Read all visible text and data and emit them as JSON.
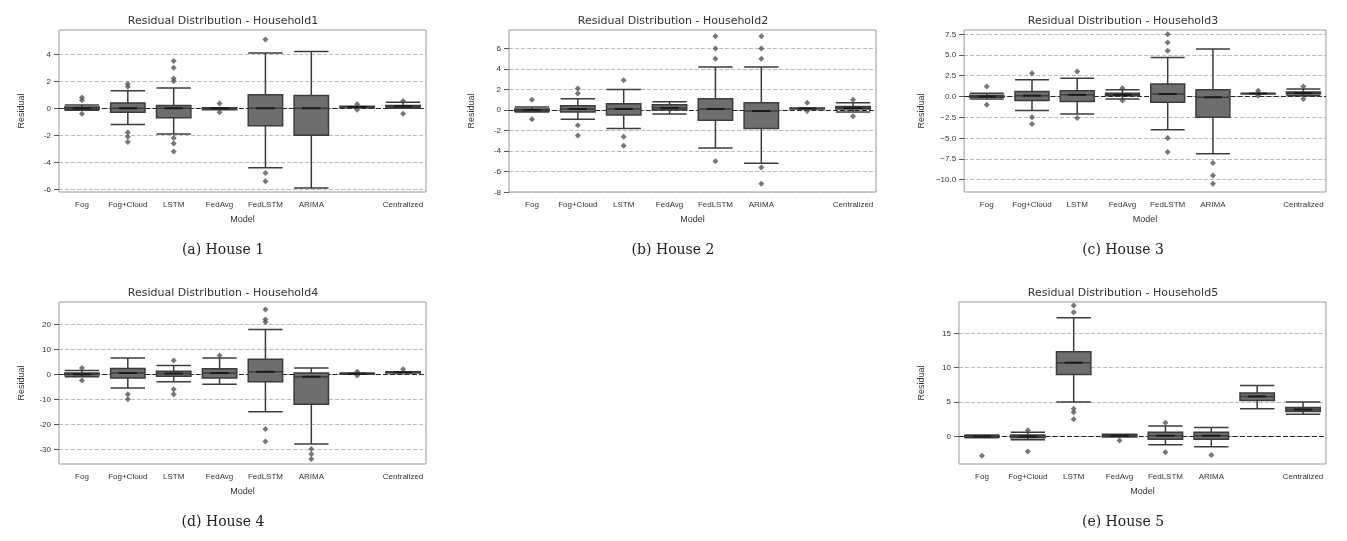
{
  "chart_data": [
    {
      "type": "box",
      "title": "Residual Distribution - Household1",
      "xlabel": "Model",
      "ylabel": "Residual",
      "annotations": [
        "(a) House 1"
      ],
      "categories": [
        "Fog",
        "Fog+Cloud",
        "LSTM",
        "FedAvg",
        "FedLSTM",
        "ARIMA",
        null,
        "Centralized"
      ],
      "color": "#6e6e6e",
      "marker": "diamond",
      "grid": "y",
      "ylim": [
        -6.2,
        5.8
      ],
      "yticks": [
        -6,
        -4,
        -2,
        0,
        2,
        4
      ],
      "ref_lines": [
        {
          "axis": "y",
          "value": 0,
          "line_style": "dashed",
          "color": "#222222"
        }
      ],
      "boxes": [
        {
          "low": -0.15,
          "q1": -0.05,
          "median": 0,
          "q3": 0.1,
          "high": 0.25,
          "outliers": [
            0.8,
            0.6,
            -0.4
          ]
        },
        {
          "low": -1.2,
          "q1": -0.3,
          "median": 0,
          "q3": 0.4,
          "high": 1.3,
          "outliers": [
            1.8,
            1.6,
            -1.8,
            -2.1,
            -2.5
          ]
        },
        {
          "low": -1.9,
          "q1": -0.7,
          "median": 0,
          "q3": 0.2,
          "high": 1.5,
          "outliers": [
            2.0,
            2.2,
            3.0,
            3.5,
            -2.2,
            -2.6,
            -3.2
          ]
        },
        {
          "low": -0.1,
          "q1": -0.1,
          "median": 0,
          "q3": 0.05,
          "high": 0.05,
          "outliers": [
            0.35,
            -0.3
          ]
        },
        {
          "low": -4.4,
          "q1": -1.3,
          "median": 0,
          "q3": 1.0,
          "high": 4.1,
          "outliers": [
            5.1,
            -4.8,
            -5.4
          ]
        },
        {
          "low": -5.9,
          "q1": -2.0,
          "median": 0,
          "q3": 0.95,
          "high": 4.2
        },
        {
          "low": 0.05,
          "q1": 0.05,
          "median": 0.1,
          "q3": 0.15,
          "high": 0.15,
          "outliers": [
            0.3,
            -0.1
          ]
        },
        {
          "low": 0,
          "q1": 0.1,
          "median": 0.15,
          "q3": 0.2,
          "high": 0.45,
          "outliers": [
            0.55,
            -0.4
          ]
        }
      ]
    },
    {
      "type": "box",
      "title": "Residual Distribution - Household2",
      "xlabel": "Model",
      "ylabel": "Residual",
      "annotations": [
        "(b) House 2"
      ],
      "categories": [
        "Fog",
        "Fog+Cloud",
        "LSTM",
        "FedAvg",
        "FedLSTM",
        "ARIMA",
        null,
        "Centralized"
      ],
      "color": "#6e6e6e",
      "marker": "diamond",
      "grid": "y",
      "ylim": [
        -8,
        7.8
      ],
      "yticks": [
        -8,
        -6,
        -4,
        -2,
        0,
        2,
        4,
        6
      ],
      "ref_lines": [
        {
          "axis": "y",
          "value": 0,
          "line_style": "dashed",
          "color": "#222222"
        }
      ],
      "boxes": [
        {
          "low": -0.2,
          "q1": -0.1,
          "median": 0,
          "q3": 0.1,
          "high": 0.3,
          "outliers": [
            1.0,
            -0.9
          ]
        },
        {
          "low": -0.9,
          "q1": -0.2,
          "median": 0.1,
          "q3": 0.4,
          "high": 1.1,
          "outliers": [
            2.1,
            1.6,
            -1.5,
            -2.5
          ]
        },
        {
          "low": -1.8,
          "q1": -0.5,
          "median": 0.1,
          "q3": 0.6,
          "high": 2.0,
          "outliers": [
            2.9,
            -2.6,
            -3.5
          ]
        },
        {
          "low": -0.4,
          "q1": 0,
          "median": 0.2,
          "q3": 0.5,
          "high": 0.8
        },
        {
          "low": -3.7,
          "q1": -1.0,
          "median": 0.1,
          "q3": 1.1,
          "high": 4.2,
          "outliers": [
            5.0,
            6.0,
            7.2,
            -5.0
          ]
        },
        {
          "low": -5.2,
          "q1": -1.8,
          "median": -0.1,
          "q3": 0.7,
          "high": 4.2,
          "outliers": [
            5.0,
            6.0,
            7.2,
            -5.6,
            -7.2
          ]
        },
        {
          "low": 0.1,
          "q1": 0.1,
          "median": 0.15,
          "q3": 0.2,
          "high": 0.2,
          "outliers": [
            0.7,
            -0.1
          ]
        },
        {
          "low": -0.2,
          "q1": 0.1,
          "median": 0.2,
          "q3": 0.35,
          "high": 0.7,
          "outliers": [
            1.0,
            -0.6
          ]
        }
      ]
    },
    {
      "type": "box",
      "title": "Residual Distribution - Household3",
      "xlabel": "Model",
      "ylabel": "Residual",
      "annotations": [
        "(c) House 3"
      ],
      "categories": [
        "Fog",
        "Fog+Cloud",
        "LSTM",
        "FedAvg",
        "FedLSTM",
        "ARIMA",
        null,
        "Centralized"
      ],
      "color": "#6e6e6e",
      "marker": "diamond",
      "grid": "y",
      "ylim": [
        -11.5,
        8
      ],
      "yticks": [
        {
          "value": -10,
          "label": "−10.0"
        },
        {
          "value": -7.5,
          "label": "−7.5"
        },
        {
          "value": -5,
          "label": "−5.0"
        },
        {
          "value": -2.5,
          "label": "−2.5"
        },
        {
          "value": 0,
          "label": "0.0"
        },
        {
          "value": 2.5,
          "label": "2.5"
        },
        {
          "value": 5,
          "label": "5.0"
        },
        {
          "value": 7.5,
          "label": "7.5"
        }
      ],
      "ref_lines": [
        {
          "axis": "y",
          "value": 0,
          "line_style": "dashed",
          "color": "#222222"
        }
      ],
      "boxes": [
        {
          "low": -0.3,
          "q1": -0.1,
          "median": 0,
          "q3": 0.15,
          "high": 0.4,
          "outliers": [
            1.2,
            -1.0
          ]
        },
        {
          "low": -1.7,
          "q1": -0.5,
          "median": 0.1,
          "q3": 0.6,
          "high": 2.0,
          "outliers": [
            2.8,
            -2.5,
            -3.3
          ]
        },
        {
          "low": -2.1,
          "q1": -0.6,
          "median": 0.2,
          "q3": 0.7,
          "high": 2.2,
          "outliers": [
            3.0,
            -2.6
          ]
        },
        {
          "low": -0.3,
          "q1": 0.1,
          "median": 0.2,
          "q3": 0.4,
          "high": 0.8,
          "outliers": [
            1.0,
            -0.5
          ]
        },
        {
          "low": -4.0,
          "q1": -0.7,
          "median": 0.3,
          "q3": 1.5,
          "high": 4.7,
          "outliers": [
            5.5,
            6.5,
            7.5,
            -5.0,
            -6.7
          ]
        },
        {
          "low": -6.9,
          "q1": -2.5,
          "median": -0.1,
          "q3": 0.8,
          "high": 5.7,
          "outliers": [
            -8.0,
            -9.5,
            -10.5
          ]
        },
        {
          "low": 0.3,
          "q1": 0.3,
          "median": 0.35,
          "q3": 0.4,
          "high": 0.4,
          "outliers": [
            0.7,
            0.1
          ]
        },
        {
          "low": 0.1,
          "q1": 0.3,
          "median": 0.4,
          "q3": 0.55,
          "high": 0.9,
          "outliers": [
            1.2,
            -0.3
          ]
        }
      ]
    },
    {
      "type": "box",
      "title": "Residual Distribution - Household4",
      "xlabel": "Model",
      "ylabel": "Residual",
      "annotations": [
        "(d) House 4"
      ],
      "categories": [
        "Fog",
        "Fog+Cloud",
        "LSTM",
        "FedAvg",
        "FedLSTM",
        "ARIMA",
        null,
        "Centralized"
      ],
      "color": "#6e6e6e",
      "marker": "diamond",
      "grid": "y",
      "ylim": [
        -36,
        29
      ],
      "yticks": [
        -30,
        -20,
        -10,
        0,
        10,
        20
      ],
      "ref_lines": [
        {
          "axis": "y",
          "value": 0,
          "line_style": "dashed",
          "color": "#222222"
        }
      ],
      "boxes": [
        {
          "low": -1,
          "q1": -0.3,
          "median": 0,
          "q3": 0.5,
          "high": 1.5,
          "outliers": [
            2.5,
            -2.5
          ]
        },
        {
          "low": -5.5,
          "q1": -1.5,
          "median": 0.5,
          "q3": 2.3,
          "high": 6.5,
          "outliers": [
            -8,
            -10
          ]
        },
        {
          "low": -3,
          "q1": -0.8,
          "median": 0.3,
          "q3": 1.2,
          "high": 3.5,
          "outliers": [
            5.5,
            -6,
            -8
          ]
        },
        {
          "low": -4,
          "q1": -1.5,
          "median": 0.5,
          "q3": 2.2,
          "high": 6.5,
          "outliers": [
            7.5
          ]
        },
        {
          "low": -15,
          "q1": -3,
          "median": 1,
          "q3": 6,
          "high": 18,
          "outliers": [
            21,
            22,
            26,
            -22,
            -27
          ]
        },
        {
          "low": -28,
          "q1": -12,
          "median": -1,
          "q3": 0.5,
          "high": 2.5,
          "outliers": [
            -30,
            -32,
            -34
          ]
        },
        {
          "low": 0,
          "q1": 0.1,
          "median": 0.2,
          "q3": 0.3,
          "high": 0.5,
          "outliers": [
            1.0,
            -0.5
          ]
        },
        {
          "low": 0.5,
          "q1": 0.5,
          "median": 0.8,
          "q3": 1.0,
          "high": 1.0,
          "outliers": [
            2.0
          ]
        }
      ]
    },
    {
      "type": "box",
      "title": "Residual Distribution - Household5",
      "xlabel": "Model",
      "ylabel": "Residual",
      "annotations": [
        "(e) House 5"
      ],
      "categories": [
        "Fog",
        "Fog+Cloud",
        "LSTM",
        "FedAvg",
        "FedLSTM",
        "ARIMA",
        null,
        "Centralized"
      ],
      "color": "#6e6e6e",
      "marker": "diamond",
      "grid": "y",
      "ylim": [
        -4,
        19.5
      ],
      "yticks": [
        0,
        5,
        10,
        15
      ],
      "ref_lines": [
        {
          "axis": "y",
          "value": 0,
          "line_style": "dashed",
          "color": "#222222"
        }
      ],
      "boxes": [
        {
          "low": -0.2,
          "q1": -0.1,
          "median": 0,
          "q3": 0.1,
          "high": 0.2,
          "outliers": [
            -2.8
          ]
        },
        {
          "low": -0.5,
          "q1": -0.2,
          "median": 0,
          "q3": 0.2,
          "high": 0.6,
          "outliers": [
            0.9,
            -2.2
          ]
        },
        {
          "low": 5,
          "q1": 9,
          "median": 10.7,
          "q3": 12.3,
          "high": 17.2,
          "outliers": [
            18,
            19,
            4,
            3.5,
            2.5
          ]
        },
        {
          "low": -0.1,
          "q1": -0.1,
          "median": 0.1,
          "q3": 0.3,
          "high": 0.3,
          "outliers": [
            -0.6
          ]
        },
        {
          "low": -1.2,
          "q1": -0.4,
          "median": 0.1,
          "q3": 0.6,
          "high": 1.5,
          "outliers": [
            2.0,
            -2.3
          ]
        },
        {
          "low": -1.5,
          "q1": -0.4,
          "median": 0.1,
          "q3": 0.6,
          "high": 1.3,
          "outliers": [
            -2.7
          ]
        },
        {
          "low": 4,
          "q1": 5.2,
          "median": 5.8,
          "q3": 6.3,
          "high": 7.4
        },
        {
          "low": 3.2,
          "q1": 3.6,
          "median": 3.9,
          "q3": 4.2,
          "high": 5.0
        }
      ]
    }
  ]
}
